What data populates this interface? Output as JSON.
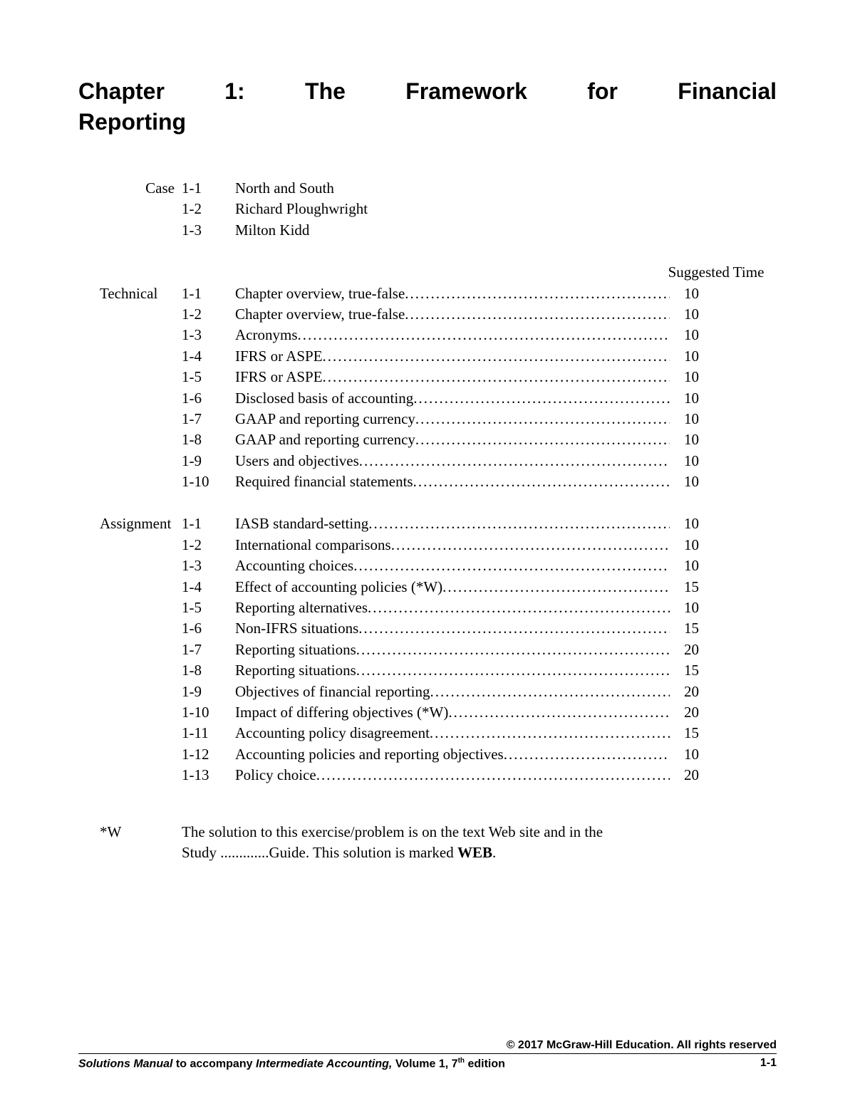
{
  "title_line1": "Chapter 1: The Framework for Financial",
  "title_line2": "Reporting",
  "sections": {
    "case_label": "Case",
    "technical_label": "Technical",
    "assignment_label": "Assignment"
  },
  "cases": [
    {
      "num": "1-1",
      "desc": "North and South"
    },
    {
      "num": "1-2",
      "desc": "Richard Ploughwright"
    },
    {
      "num": "1-3",
      "desc": "Milton Kidd"
    }
  ],
  "suggested_time_label": "Suggested Time",
  "technical": [
    {
      "num": "1-1",
      "desc": "Chapter overview, true-false",
      "time": "10"
    },
    {
      "num": "1-2",
      "desc": "Chapter overview, true-false",
      "time": "10"
    },
    {
      "num": "1-3",
      "desc": "Acronyms",
      "time": "10"
    },
    {
      "num": "1-4",
      "desc": "IFRS or ASPE",
      "time": "10"
    },
    {
      "num": "1-5",
      "desc": "IFRS or ASPE",
      "time": "10"
    },
    {
      "num": "1-6",
      "desc": "Disclosed basis of accounting",
      "time": "10"
    },
    {
      "num": "1-7",
      "desc": "GAAP and reporting currency",
      "time": "10"
    },
    {
      "num": "1-8",
      "desc": "GAAP and reporting currency",
      "time": "10"
    },
    {
      "num": "1-9",
      "desc": "Users and objectives",
      "time": "10"
    },
    {
      "num": "1-10",
      "desc": "Required financial statements",
      "time": "10"
    }
  ],
  "assignments": [
    {
      "num": "1-1",
      "desc": "IASB standard-setting",
      "time": "10"
    },
    {
      "num": "1-2",
      "desc": "International comparisons",
      "time": "10"
    },
    {
      "num": "1-3",
      "desc": "Accounting choices",
      "time": "10"
    },
    {
      "num": "1-4",
      "desc": "Effect of accounting policies (*W)",
      "time": "15"
    },
    {
      "num": "1-5",
      "desc": "Reporting alternatives",
      "time": "10"
    },
    {
      "num": "1-6",
      "desc": "Non-IFRS situations ",
      "time": "15"
    },
    {
      "num": "1-7",
      "desc": "Reporting situations",
      "time": "20"
    },
    {
      "num": "1-8",
      "desc": "Reporting situations",
      "time": "15"
    },
    {
      "num": "1-9",
      "desc": "Objectives of financial reporting",
      "time": "20"
    },
    {
      "num": "1-10",
      "desc": "Impact of differing objectives (*W)",
      "time": "20"
    },
    {
      "num": "1-11",
      "desc": "Accounting policy disagreement",
      "time": "15"
    },
    {
      "num": "1-12",
      "desc": "Accounting policies and reporting objectives",
      "time": "10"
    },
    {
      "num": "1-13",
      "desc": "Policy choice",
      "time": "20"
    }
  ],
  "footnote": {
    "label": "*W",
    "text_part1": "The solution to this exercise/problem is on the text Web site and in the Study ",
    "text_dots": ".............",
    "text_part2": "Guide. This solution is marked ",
    "text_bold": "WEB",
    "text_end": "."
  },
  "footer": {
    "copyright": "© 2017 McGraw-Hill Education. All rights reserved",
    "manual_ital": "Solutions Manual",
    "manual_mid": " to accompany ",
    "book_ital": "Intermediate Accounting,",
    "vol": " Volume 1, 7",
    "th": "th",
    "edition": " edition",
    "page": "1-1"
  }
}
